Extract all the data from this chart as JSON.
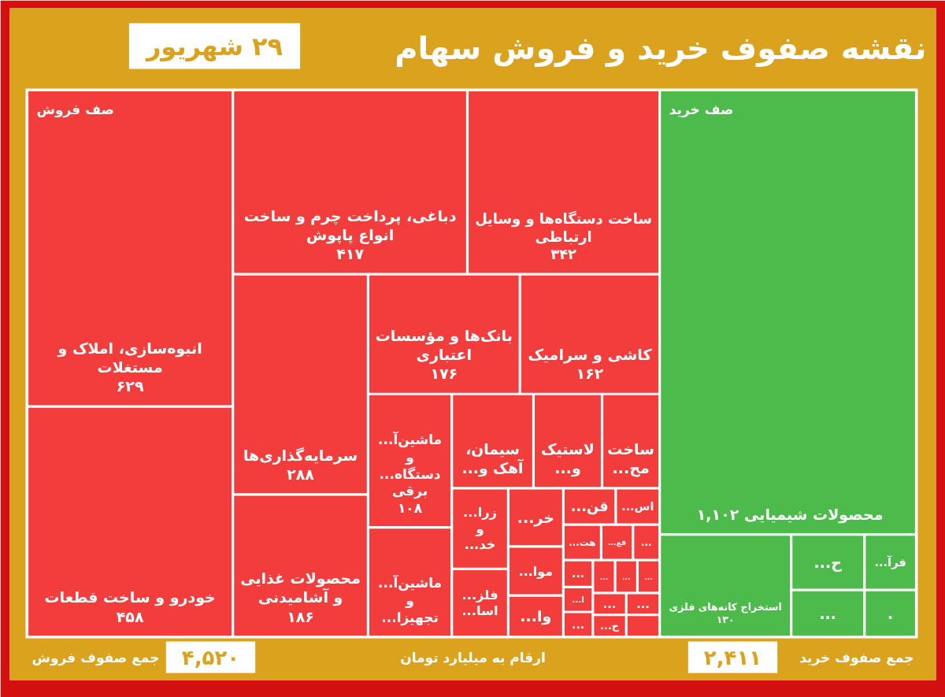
{
  "chart_data": {
    "type": "other",
    "title": "نقشه صفوف خرید و فروش سهام",
    "subtitle": "۲۹ شهریور",
    "annotations": [
      "جمع صفوف فروش",
      "ارقام به میلیارد تومان",
      "جمع صفوف خرید"
    ],
    "totals": [
      "۴,۵۲۰",
      "۲,۴۱۱"
    ],
    "categories": [
      "انبوه‌سازی، املاک و\nمستغلات",
      "خودرو و ساخت قطعات",
      "دباغی، پرداخت چرم و ساخت\nانواع پاپوش",
      "ساخت دستگاه‌ها و وسایل\nارتباطی",
      "سرمایه‌گذاری‌ها",
      "محصولات غذایی\nو آشامیدنی",
      "بانک‌ها و مؤسسات\nاعتباری",
      "کاشی و سرامیک",
      "ماشین‌آ...\nو\nدستگاه...\nبرقی",
      "ماشین‌آ...\nو\nتجهیزا...",
      "سیمان،\nآهک و...",
      "لاستیک\nو...",
      "ساخت\nمح...",
      "زرا...\nو\nخد...",
      "فلز...\nاسا...",
      "خر...",
      "موا...",
      "وا...",
      "قن...",
      "اس...",
      "هت...",
      "فع...",
      "...",
      "...",
      "ا...",
      "...",
      "...",
      "...",
      "...",
      "...",
      "ح...",
      "...",
      null,
      "محصولات شیمیایی",
      "استخراج کانه‌های فلزی",
      "ح...",
      "...",
      "فرآ...",
      "."
    ],
    "series": [
      {
        "name": "صف فروش",
        "color": "#f33d3d",
        "values": [
          629,
          458,
          417,
          342,
          288,
          186,
          176,
          162,
          108,
          null,
          null,
          null,
          null,
          null,
          null,
          null,
          null,
          null,
          null,
          null,
          null,
          null,
          null,
          null,
          null,
          null,
          null,
          null,
          null,
          null,
          null,
          null,
          null,
          null,
          null,
          null,
          null,
          null,
          null
        ],
        "value_labels": [
          "۶۲۹",
          "۴۵۸",
          "۴۱۷",
          "۳۴۲",
          "۲۸۸",
          "۱۸۶",
          "۱۷۶",
          "۱۶۲",
          "۱۰۸",
          null,
          null,
          null,
          null,
          null,
          null,
          null,
          null,
          null,
          null,
          null,
          null,
          null,
          null,
          null,
          null,
          null,
          null,
          null,
          null,
          null,
          null,
          null,
          null,
          null,
          null,
          null,
          null,
          null,
          null
        ]
      },
      {
        "name": "صف خرید",
        "color": "#4cbb4b",
        "values": [
          null,
          null,
          null,
          null,
          null,
          null,
          null,
          null,
          null,
          null,
          null,
          null,
          null,
          null,
          null,
          null,
          null,
          null,
          null,
          null,
          null,
          null,
          null,
          null,
          null,
          null,
          null,
          null,
          null,
          null,
          null,
          null,
          null,
          1102,
          130,
          null,
          null,
          null,
          null
        ],
        "value_labels": [
          null,
          null,
          null,
          null,
          null,
          null,
          null,
          null,
          null,
          null,
          null,
          null,
          null,
          null,
          null,
          null,
          null,
          null,
          null,
          null,
          null,
          null,
          null,
          null,
          null,
          null,
          null,
          null,
          null,
          null,
          null,
          null,
          null,
          "۱,۱۰۲",
          "۱۳۰",
          null,
          null,
          null,
          null
        ]
      }
    ]
  }
}
